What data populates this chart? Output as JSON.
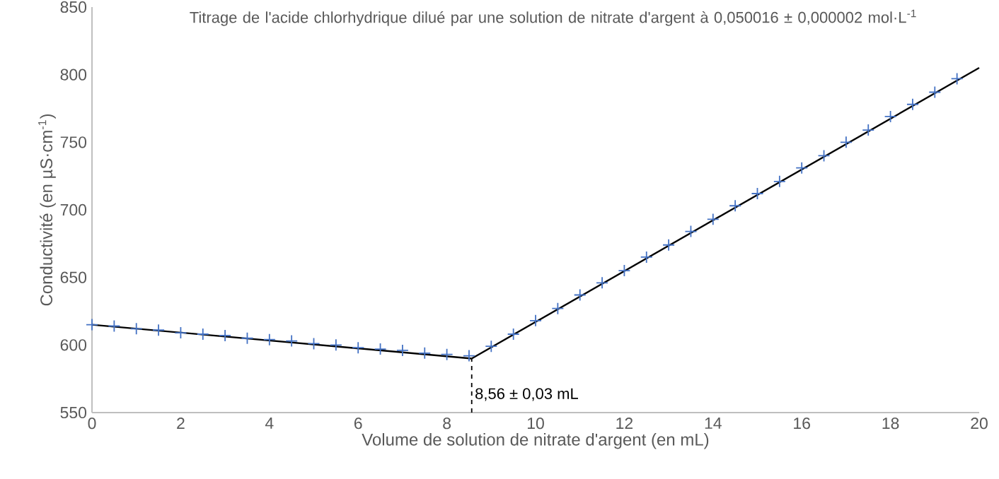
{
  "chart_data": {
    "type": "scatter",
    "title": "Titrage de l'acide chlorhydrique dilué par une solution de nitrate d'argent à 0,050016 ± 0,000002 mol·L$^{-1}$",
    "xlabel": "Volume de solution de nitrate d'argent (en mL)",
    "ylabel": "Conductivité (en µS·cm$^{-1}$)",
    "series": [
      {
        "type": "scatter",
        "color": "#4472c4",
        "marker": "cross",
        "x": [
          0,
          0.5,
          1,
          1.5,
          2,
          2.5,
          3,
          3.5,
          4,
          4.5,
          5,
          5.5,
          6,
          6.5,
          7,
          7.5,
          8,
          8.5,
          9,
          9.5,
          10,
          10.5,
          11,
          11.5,
          12,
          12.5,
          13,
          13.5,
          14,
          14.5,
          15,
          15.5,
          16,
          16.5,
          17,
          17.5,
          18,
          18.5,
          19,
          19.5
        ],
        "values": [
          615,
          614,
          612,
          611,
          609,
          608,
          607,
          605,
          604,
          603,
          601,
          600,
          598,
          597,
          596,
          594,
          593,
          592,
          599,
          608,
          618,
          627,
          637,
          646,
          655,
          665,
          674,
          684,
          693,
          703,
          712,
          721,
          731,
          740,
          750,
          759,
          769,
          778,
          787,
          797
        ]
      },
      {
        "type": "line",
        "color": "#000000",
        "line_style": "solid",
        "x": [
          0,
          8.56
        ],
        "values": [
          615,
          590
        ]
      },
      {
        "type": "line",
        "color": "#000000",
        "line_style": "solid",
        "x": [
          8.56,
          20
        ],
        "values": [
          590,
          805
        ]
      }
    ],
    "xlim": [
      0,
      20
    ],
    "xticks": [
      0,
      2,
      4,
      6,
      8,
      10,
      12,
      14,
      16,
      18,
      20
    ],
    "ylim": [
      550,
      850
    ],
    "yticks": [
      550,
      600,
      650,
      700,
      750,
      800,
      850
    ],
    "ref_lines": [
      {
        "axis": "x",
        "value": 8.56,
        "label": "8,56 ± 0,03 mL",
        "color": "#000000",
        "line_style": "dashed"
      }
    ],
    "grid": false
  }
}
